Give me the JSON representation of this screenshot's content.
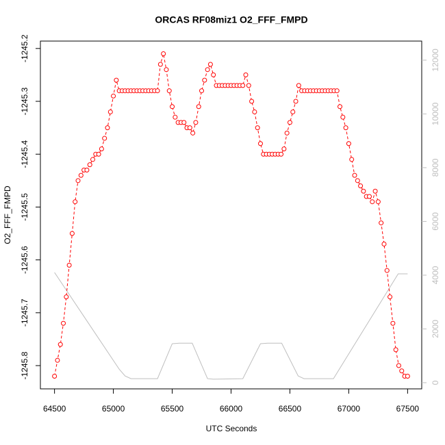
{
  "chart_data": {
    "type": "scatter",
    "title": "ORCAS RF08miz1 O2_FFF_FMPD",
    "xlabel": "UTC Seconds",
    "ylabel": "O2_FFF_FMPD",
    "xlim": [
      64380,
      67620
    ],
    "xticks": [
      64500,
      65000,
      65500,
      66000,
      66500,
      67000,
      67500
    ],
    "ylim": [
      -1245.844,
      -1245.186
    ],
    "yticks": [
      -1245.2,
      -1245.3,
      -1245.4,
      -1245.5,
      -1245.6,
      -1245.7,
      -1245.8
    ],
    "y2lim": [
      -230,
      12710
    ],
    "y2ticks": [
      0,
      2000,
      4000,
      6000,
      8000,
      10000,
      12000
    ],
    "y2color": "#bebebe",
    "series": [
      {
        "type": "scatter",
        "color": "#ff0000",
        "x": [
          64500,
          64525,
          64550,
          64575,
          64600,
          64625,
          64650,
          64675,
          64700,
          64725,
          64750,
          64775,
          64800,
          64825,
          64850,
          64875,
          64900,
          64925,
          64950,
          64975,
          65000,
          65025,
          65050,
          65075,
          65100,
          65125,
          65150,
          65175,
          65200,
          65225,
          65250,
          65275,
          65300,
          65325,
          65350,
          65375,
          65400,
          65425,
          65450,
          65475,
          65500,
          65525,
          65550,
          65575,
          65600,
          65625,
          65650,
          65675,
          65700,
          65725,
          65750,
          65775,
          65800,
          65825,
          65850,
          65875,
          65900,
          65925,
          65950,
          65975,
          66000,
          66025,
          66050,
          66075,
          66100,
          66125,
          66150,
          66175,
          66200,
          66225,
          66250,
          66275,
          66300,
          66325,
          66350,
          66375,
          66400,
          66425,
          66450,
          66475,
          66500,
          66525,
          66550,
          66575,
          66600,
          66625,
          66650,
          66675,
          66700,
          66725,
          66750,
          66775,
          66800,
          66825,
          66850,
          66875,
          66900,
          66925,
          66950,
          66975,
          67000,
          67025,
          67050,
          67075,
          67100,
          67125,
          67150,
          67175,
          67200,
          67225,
          67250,
          67275,
          67300,
          67325,
          67350,
          67375,
          67400,
          67425,
          67450,
          67475,
          67500
        ],
        "values": [
          -1245.82,
          -1245.79,
          -1245.76,
          -1245.72,
          -1245.67,
          -1245.61,
          -1245.55,
          -1245.49,
          -1245.45,
          -1245.44,
          -1245.43,
          -1245.43,
          -1245.42,
          -1245.41,
          -1245.4,
          -1245.4,
          -1245.39,
          -1245.37,
          -1245.35,
          -1245.32,
          -1245.29,
          -1245.26,
          -1245.28,
          -1245.28,
          -1245.28,
          -1245.28,
          -1245.28,
          -1245.28,
          -1245.28,
          -1245.28,
          -1245.28,
          -1245.28,
          -1245.28,
          -1245.28,
          -1245.28,
          -1245.28,
          -1245.23,
          -1245.21,
          -1245.24,
          -1245.28,
          -1245.31,
          -1245.33,
          -1245.34,
          -1245.34,
          -1245.34,
          -1245.35,
          -1245.35,
          -1245.36,
          -1245.34,
          -1245.31,
          -1245.28,
          -1245.26,
          -1245.24,
          -1245.23,
          -1245.25,
          -1245.27,
          -1245.27,
          -1245.27,
          -1245.27,
          -1245.27,
          -1245.27,
          -1245.27,
          -1245.27,
          -1245.27,
          -1245.27,
          -1245.25,
          -1245.27,
          -1245.3,
          -1245.32,
          -1245.35,
          -1245.38,
          -1245.4,
          -1245.4,
          -1245.4,
          -1245.4,
          -1245.4,
          -1245.4,
          -1245.4,
          -1245.39,
          -1245.36,
          -1245.34,
          -1245.32,
          -1245.3,
          -1245.27,
          -1245.28,
          -1245.28,
          -1245.28,
          -1245.28,
          -1245.28,
          -1245.28,
          -1245.28,
          -1245.28,
          -1245.28,
          -1245.28,
          -1245.28,
          -1245.28,
          -1245.28,
          -1245.31,
          -1245.33,
          -1245.35,
          -1245.38,
          -1245.41,
          -1245.44,
          -1245.45,
          -1245.46,
          -1245.47,
          -1245.48,
          -1245.48,
          -1245.49,
          -1245.47,
          -1245.49,
          -1245.53,
          -1245.57,
          -1245.62,
          -1245.67,
          -1245.72,
          -1245.77,
          -1245.8,
          -1245.81,
          -1245.82,
          -1245.82
        ]
      },
      {
        "type": "line",
        "color": "#bebebe",
        "axis": "y2",
        "x": [
          64500,
          65050,
          65100,
          65150,
          65375,
          65500,
          65560,
          65670,
          65800,
          65850,
          66100,
          66250,
          66310,
          66430,
          66570,
          66620,
          66870,
          67420,
          67500
        ],
        "values": [
          4100,
          500,
          250,
          150,
          150,
          1450,
          1470,
          1470,
          150,
          130,
          150,
          1450,
          1470,
          1470,
          250,
          150,
          150,
          4050,
          4050
        ]
      }
    ]
  }
}
